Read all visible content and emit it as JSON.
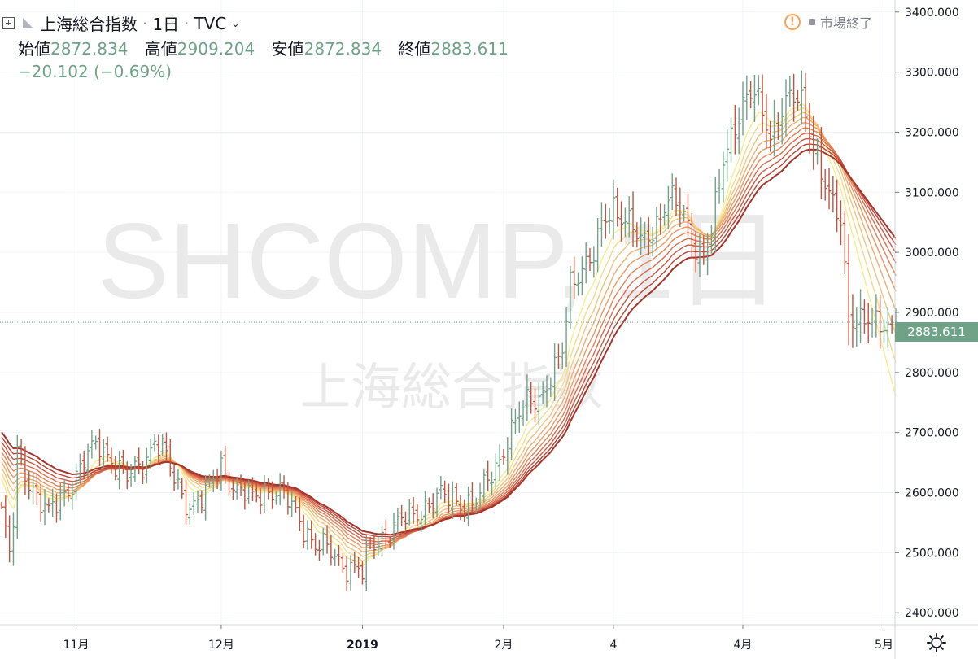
{
  "header": {
    "symbol_name": "上海総合指数",
    "interval": "1日",
    "exchange": "TVC",
    "status_text": "市場終了"
  },
  "ohlc": {
    "open_label": "始値",
    "open": "2872.834",
    "high_label": "高値",
    "high": "2909.204",
    "low_label": "安値",
    "low": "2872.834",
    "close_label": "終値",
    "close": "2883.611",
    "change": "−20.102 (−0.69%)"
  },
  "watermark": {
    "symbol": "SHCOMP, 1日",
    "name": "上海総合指数"
  },
  "last_price_label": "2883.611",
  "colors": {
    "up": "#6fa287",
    "down": "#c0553f",
    "accent": "#6fa287",
    "warning": "#f7a35c"
  },
  "chart_data": {
    "type": "ohlc-bar",
    "y_ticks": [
      "3400.000",
      "3300.000",
      "3200.000",
      "3100.000",
      "3000.000",
      "2900.000",
      "2800.000",
      "2700.000",
      "2600.000",
      "2500.000",
      "2400.000"
    ],
    "ylim": [
      2380,
      3420
    ],
    "x_labels": [
      {
        "label": "11月",
        "bar": 19
      },
      {
        "label": "12月",
        "bar": 56
      },
      {
        "label": "2019",
        "bar": 92
      },
      {
        "label": "2月",
        "bar": 128
      },
      {
        "label": "4",
        "bar": 156
      },
      {
        "label": "4月",
        "bar": 189
      },
      {
        "label": "5月",
        "bar": 225
      }
    ],
    "last_price": 2883.611,
    "grid": true,
    "ribbon": {
      "lines": 10,
      "colors": [
        "#f8ec8c",
        "#f6d98a",
        "#f3c47e",
        "#efae70",
        "#ea9863",
        "#e48258",
        "#d96d4d",
        "#cb5842",
        "#b94436",
        "#a5352a"
      ]
    },
    "anchors": [
      [
        0,
        2570,
        5
      ],
      [
        1,
        2530,
        12
      ],
      [
        2,
        2490,
        15
      ],
      [
        3,
        2550,
        18
      ],
      [
        4,
        2660,
        12
      ],
      [
        8,
        2610,
        15
      ],
      [
        12,
        2560,
        14
      ],
      [
        16,
        2600,
        12
      ],
      [
        22,
        2660,
        11
      ],
      [
        25,
        2680,
        10
      ],
      [
        28,
        2660,
        10
      ],
      [
        32,
        2620,
        10
      ],
      [
        36,
        2650,
        10
      ],
      [
        39,
        2690,
        10
      ],
      [
        41,
        2670,
        10
      ],
      [
        44,
        2620,
        10
      ],
      [
        48,
        2580,
        10
      ],
      [
        52,
        2590,
        10
      ],
      [
        56,
        2650,
        10
      ],
      [
        60,
        2600,
        10
      ],
      [
        64,
        2590,
        10
      ],
      [
        67,
        2610,
        10
      ],
      [
        70,
        2600,
        10
      ],
      [
        72,
        2590,
        10
      ],
      [
        76,
        2560,
        10
      ],
      [
        80,
        2510,
        10
      ],
      [
        84,
        2500,
        10
      ],
      [
        88,
        2480,
        10
      ],
      [
        91,
        2470,
        10
      ],
      [
        92,
        2460,
        10
      ],
      [
        94,
        2510,
        10
      ],
      [
        97,
        2530,
        10
      ],
      [
        100,
        2540,
        10
      ],
      [
        104,
        2560,
        10
      ],
      [
        108,
        2580,
        10
      ],
      [
        112,
        2590,
        10
      ],
      [
        116,
        2590,
        10
      ],
      [
        120,
        2580,
        10
      ],
      [
        122,
        2590,
        10
      ],
      [
        124,
        2620,
        12
      ],
      [
        127,
        2660,
        15
      ],
      [
        130,
        2700,
        15
      ],
      [
        134,
        2750,
        15
      ],
      [
        138,
        2770,
        15
      ],
      [
        141,
        2800,
        15
      ],
      [
        143,
        2830,
        15
      ],
      [
        145,
        2950,
        15
      ],
      [
        148,
        2980,
        15
      ],
      [
        151,
        2990,
        15
      ],
      [
        153,
        3040,
        20
      ],
      [
        156,
        3080,
        18
      ],
      [
        160,
        3050,
        18
      ],
      [
        163,
        3010,
        18
      ],
      [
        166,
        3040,
        15
      ],
      [
        170,
        3090,
        15
      ],
      [
        174,
        3060,
        15
      ],
      [
        177,
        3010,
        15
      ],
      [
        179,
        2995,
        15
      ],
      [
        181,
        3030,
        15
      ],
      [
        184,
        3150,
        20
      ],
      [
        186,
        3200,
        20
      ],
      [
        189,
        3250,
        20
      ],
      [
        192,
        3260,
        20
      ],
      [
        196,
        3200,
        20
      ],
      [
        200,
        3250,
        20
      ],
      [
        204,
        3250,
        20
      ],
      [
        206,
        3210,
        20
      ],
      [
        208,
        3160,
        20
      ],
      [
        210,
        3110,
        20
      ],
      [
        212,
        3070,
        20
      ],
      [
        214,
        3050,
        20
      ],
      [
        216,
        2900,
        30
      ],
      [
        219,
        2890,
        20
      ],
      [
        222,
        2875,
        20
      ],
      [
        225,
        2880,
        18
      ],
      [
        228,
        2883.611,
        15
      ]
    ],
    "bars_total": 229
  }
}
